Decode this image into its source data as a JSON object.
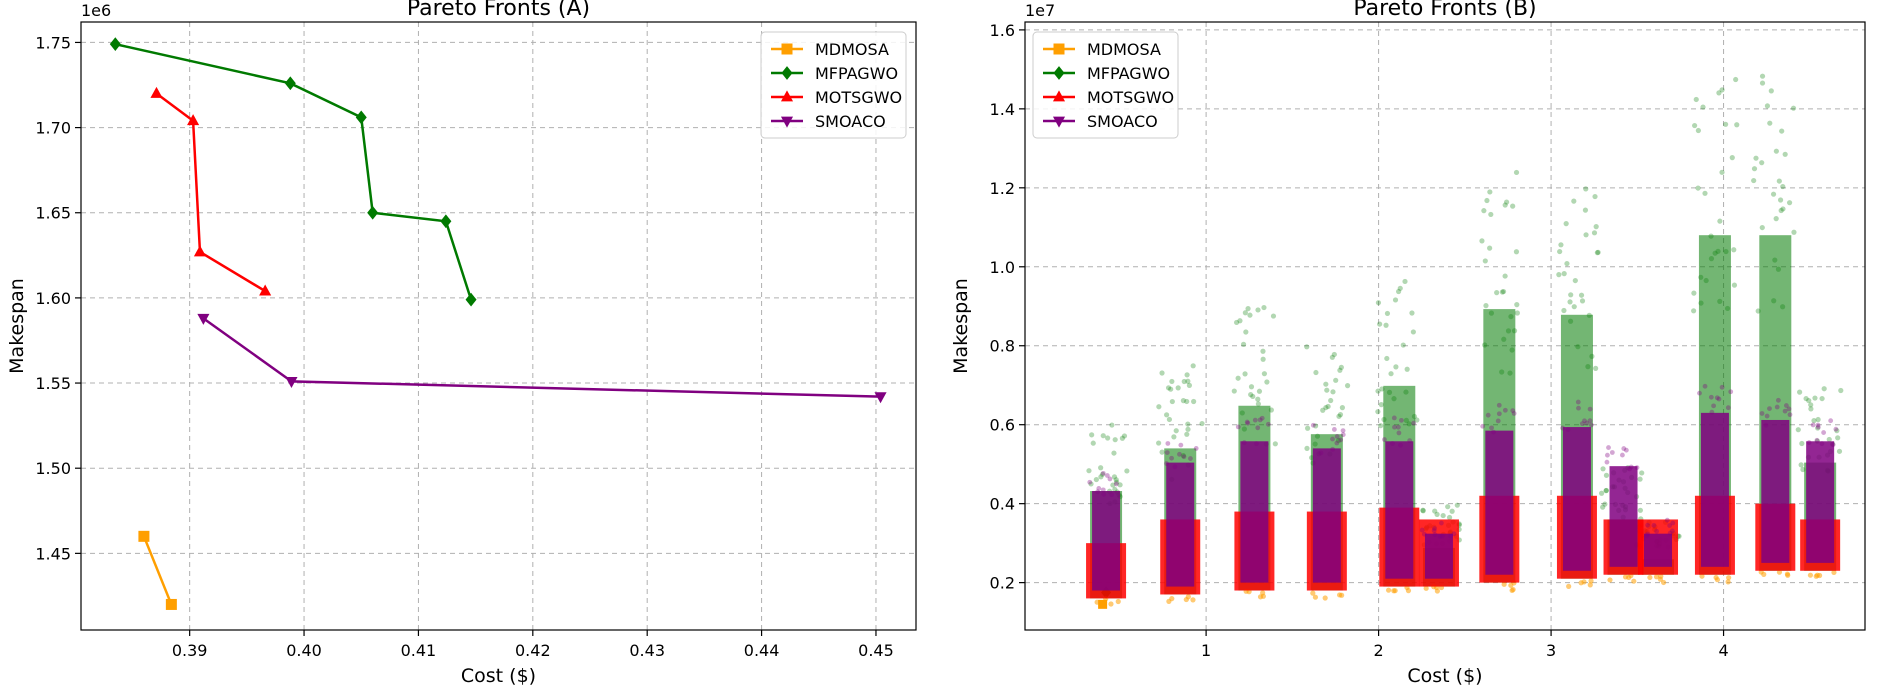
{
  "chart_data": [
    {
      "type": "line",
      "title": "Pareto Fronts (A)",
      "xlabel": "Cost ($)",
      "ylabel": "Makespan",
      "y_multiplier": "1e6",
      "xlim": [
        0.3805,
        0.4535
      ],
      "ylim": [
        1.405,
        1.762
      ],
      "xticks": [
        0.39,
        0.4,
        0.41,
        0.42,
        0.43,
        0.44,
        0.45
      ],
      "xtick_labels": [
        "0.39",
        "0.40",
        "0.41",
        "0.42",
        "0.43",
        "0.44",
        "0.45"
      ],
      "yticks": [
        1.45,
        1.5,
        1.55,
        1.6,
        1.65,
        1.7,
        1.75
      ],
      "ytick_labels": [
        "1.45",
        "1.50",
        "1.55",
        "1.60",
        "1.65",
        "1.70",
        "1.75"
      ],
      "grid": true,
      "legend_position": "top-right",
      "series": [
        {
          "name": "MDMOSA",
          "color": "#ff9f00",
          "marker": "square",
          "x": [
            0.386,
            0.3884
          ],
          "y": [
            1.46,
            1.42
          ]
        },
        {
          "name": "MFPAGWO",
          "color": "#007a00",
          "marker": "diamond",
          "x": [
            0.3835,
            0.3988,
            0.405,
            0.406,
            0.4124,
            0.4146
          ],
          "y": [
            1.749,
            1.726,
            1.706,
            1.65,
            1.645,
            1.599
          ]
        },
        {
          "name": "MOTSGWO",
          "color": "#ff0000",
          "marker": "triangle-up",
          "x": [
            0.3871,
            0.3903,
            0.3909,
            0.3966
          ],
          "y": [
            1.72,
            1.704,
            1.627,
            1.604
          ]
        },
        {
          "name": "SMOACO",
          "color": "#800080",
          "marker": "triangle-down",
          "x": [
            0.3912,
            0.3989,
            0.4504
          ],
          "y": [
            1.588,
            1.551,
            1.542
          ]
        }
      ]
    },
    {
      "type": "scatter",
      "title": "Pareto Fronts (B)",
      "xlabel": "Cost ($)",
      "ylabel": "Makespan",
      "y_multiplier": "1e7",
      "xlim": [
        -0.05,
        4.82
      ],
      "ylim": [
        0.08,
        1.62
      ],
      "xticks": [
        1,
        2,
        3,
        4
      ],
      "xtick_labels": [
        "1",
        "2",
        "3",
        "4"
      ],
      "yticks": [
        0.2,
        0.4,
        0.6,
        0.8,
        1.0,
        1.2,
        1.4,
        1.6
      ],
      "ytick_labels": [
        "0.2",
        "0.4",
        "0.6",
        "0.8",
        "1.0",
        "1.2",
        "1.4",
        "1.6"
      ],
      "grid": true,
      "legend_position": "top-left",
      "series": [
        {
          "name": "MDMOSA",
          "color": "#ff9f00",
          "marker": "square"
        },
        {
          "name": "MFPAGWO",
          "color": "#007a00",
          "marker": "diamond"
        },
        {
          "name": "MOTSGWO",
          "color": "#ff0000",
          "marker": "triangle-up"
        },
        {
          "name": "SMOACO",
          "color": "#800080",
          "marker": "triangle-down"
        }
      ],
      "clusters": [
        {
          "x": 0.42,
          "green_top": 0.6,
          "purple_top": 0.48,
          "red_top": 0.3,
          "base": 0.16
        },
        {
          "x": 0.85,
          "green_top": 0.75,
          "purple_top": 0.56,
          "red_top": 0.36,
          "base": 0.17
        },
        {
          "x": 1.28,
          "green_top": 0.9,
          "purple_top": 0.62,
          "red_top": 0.38,
          "base": 0.18
        },
        {
          "x": 1.7,
          "green_top": 0.8,
          "purple_top": 0.6,
          "red_top": 0.38,
          "base": 0.18
        },
        {
          "x": 2.12,
          "green_top": 0.97,
          "purple_top": 0.62,
          "red_top": 0.39,
          "base": 0.19
        },
        {
          "x": 2.35,
          "green_top": 0.4,
          "purple_top": 0.36,
          "red_top": 0.36,
          "base": 0.19
        },
        {
          "x": 2.7,
          "green_top": 1.24,
          "purple_top": 0.65,
          "red_top": 0.42,
          "base": 0.2
        },
        {
          "x": 3.15,
          "green_top": 1.22,
          "purple_top": 0.66,
          "red_top": 0.42,
          "base": 0.21
        },
        {
          "x": 3.42,
          "green_top": 0.5,
          "purple_top": 0.55,
          "red_top": 0.36,
          "base": 0.22
        },
        {
          "x": 3.62,
          "green_top": 0.36,
          "purple_top": 0.36,
          "red_top": 0.36,
          "base": 0.22
        },
        {
          "x": 3.95,
          "green_top": 1.5,
          "purple_top": 0.7,
          "red_top": 0.42,
          "base": 0.22
        },
        {
          "x": 4.3,
          "green_top": 1.5,
          "purple_top": 0.68,
          "red_top": 0.4,
          "base": 0.23
        },
        {
          "x": 4.56,
          "green_top": 0.7,
          "purple_top": 0.62,
          "red_top": 0.36,
          "base": 0.23
        }
      ]
    }
  ]
}
